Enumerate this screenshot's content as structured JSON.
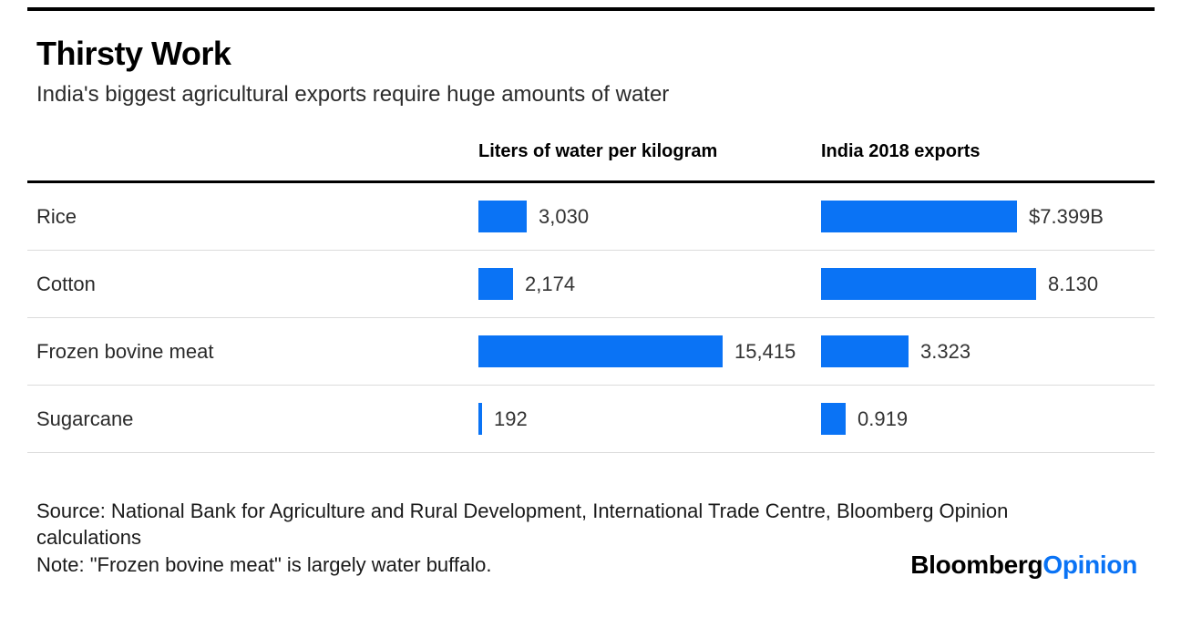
{
  "header": {
    "title": "Thirsty Work",
    "subtitle": "India's biggest agricultural exports require huge amounts of water"
  },
  "chart_data": {
    "type": "bar",
    "orientation": "horizontal",
    "title": "Thirsty Work",
    "subtitle": "India's biggest agricultural exports require huge amounts of water",
    "categories": [
      "Rice",
      "Cotton",
      "Frozen bovine meat",
      "Sugarcane"
    ],
    "series": [
      {
        "name": "Liters of water per kilogram",
        "values": [
          3030,
          2174,
          15415,
          192
        ],
        "value_labels": [
          "3,030",
          "2,174",
          "15,415",
          "192"
        ]
      },
      {
        "name": "India 2018 exports",
        "values": [
          7.399,
          8.13,
          3.323,
          0.919
        ],
        "value_labels": [
          "$7.399B",
          "8.130",
          "3.323",
          "0.919"
        ]
      }
    ],
    "bar_color": "#0a73f5",
    "grid": false,
    "legend_position": "column headers above bars",
    "axis_ticks": "none (values labeled directly at bar ends)"
  },
  "footer": {
    "source": "Source: National Bank for Agriculture and Rural Development, International Trade Centre, Bloomberg Opinion calculations",
    "note": "Note: \"Frozen bovine meat\" is largely water buffalo.",
    "logo": {
      "brand": "Bloomberg",
      "suffix": "Opinion"
    }
  },
  "colors": {
    "accent_blue": "#0a73f5",
    "rule_black": "#000000",
    "separator_gray": "#dcdcdc"
  }
}
